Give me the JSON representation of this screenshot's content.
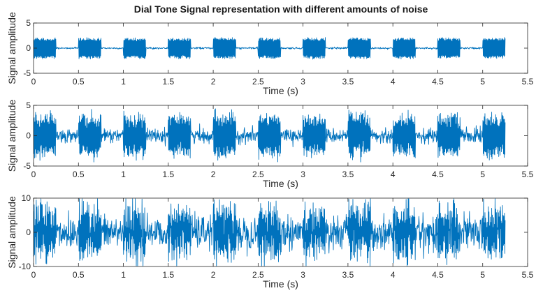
{
  "title": "Dial Tone Signal representation with different amounts of noise",
  "chart_data": [
    {
      "type": "line",
      "xlabel": "Time (s)",
      "ylabel": "Signal amplitude",
      "xlim": [
        0,
        5.5
      ],
      "ylim": [
        -5,
        5
      ],
      "xticks": [
        "0",
        "0.5",
        "1",
        "1.5",
        "2",
        "2.5",
        "3",
        "3.5",
        "4",
        "4.5",
        "5",
        "5.5"
      ],
      "yticks": [
        "-5",
        "0",
        "5"
      ],
      "series": [
        {
          "color": "#0072BD",
          "signal_duration_s": 5.25,
          "tone_on_intervals_s": [
            [
              0,
              0.25
            ],
            [
              0.5,
              0.75
            ],
            [
              1.0,
              1.25
            ],
            [
              1.5,
              1.75
            ],
            [
              2.0,
              2.25
            ],
            [
              2.5,
              2.75
            ],
            [
              3.0,
              3.25
            ],
            [
              3.5,
              3.75
            ],
            [
              4.0,
              4.25
            ],
            [
              4.5,
              4.75
            ],
            [
              5.0,
              5.25
            ]
          ],
          "tone_peak_amplitude": 2,
          "noise_peak_amplitude": 0.2
        }
      ]
    },
    {
      "type": "line",
      "xlabel": "Time (s)",
      "ylabel": "Signal amplitude",
      "xlim": [
        0,
        5.5
      ],
      "ylim": [
        -5,
        5
      ],
      "xticks": [
        "0",
        "0.5",
        "1",
        "1.5",
        "2",
        "2.5",
        "3",
        "3.5",
        "4",
        "4.5",
        "5",
        "5.5"
      ],
      "yticks": [
        "-5",
        "0",
        "5"
      ],
      "series": [
        {
          "color": "#0072BD",
          "signal_duration_s": 5.25,
          "tone_on_intervals_s": [
            [
              0,
              0.25
            ],
            [
              0.5,
              0.75
            ],
            [
              1.0,
              1.25
            ],
            [
              1.5,
              1.75
            ],
            [
              2.0,
              2.25
            ],
            [
              2.5,
              2.75
            ],
            [
              3.0,
              3.25
            ],
            [
              3.5,
              3.75
            ],
            [
              4.0,
              4.25
            ],
            [
              4.5,
              4.75
            ],
            [
              5.0,
              5.25
            ]
          ],
          "tone_peak_amplitude": 3,
          "noise_peak_amplitude": 1.3
        }
      ]
    },
    {
      "type": "line",
      "xlabel": "Time (s)",
      "ylabel": "Signal amplitude",
      "xlim": [
        0,
        5.5
      ],
      "ylim": [
        -10,
        10
      ],
      "xticks": [
        "0",
        "0.5",
        "1",
        "1.5",
        "2",
        "2.5",
        "3",
        "3.5",
        "4",
        "4.5",
        "5",
        "5.5"
      ],
      "yticks": [
        "-10",
        "0",
        "10"
      ],
      "series": [
        {
          "color": "#0072BD",
          "signal_duration_s": 5.25,
          "tone_on_intervals_s": [
            [
              0,
              0.25
            ],
            [
              0.5,
              0.75
            ],
            [
              1.0,
              1.25
            ],
            [
              1.5,
              1.75
            ],
            [
              2.0,
              2.25
            ],
            [
              2.5,
              2.75
            ],
            [
              3.0,
              3.25
            ],
            [
              3.5,
              3.75
            ],
            [
              4.0,
              4.25
            ],
            [
              4.5,
              4.75
            ],
            [
              5.0,
              5.25
            ]
          ],
          "tone_peak_amplitude": 6,
          "noise_peak_amplitude": 5.5
        }
      ]
    }
  ]
}
